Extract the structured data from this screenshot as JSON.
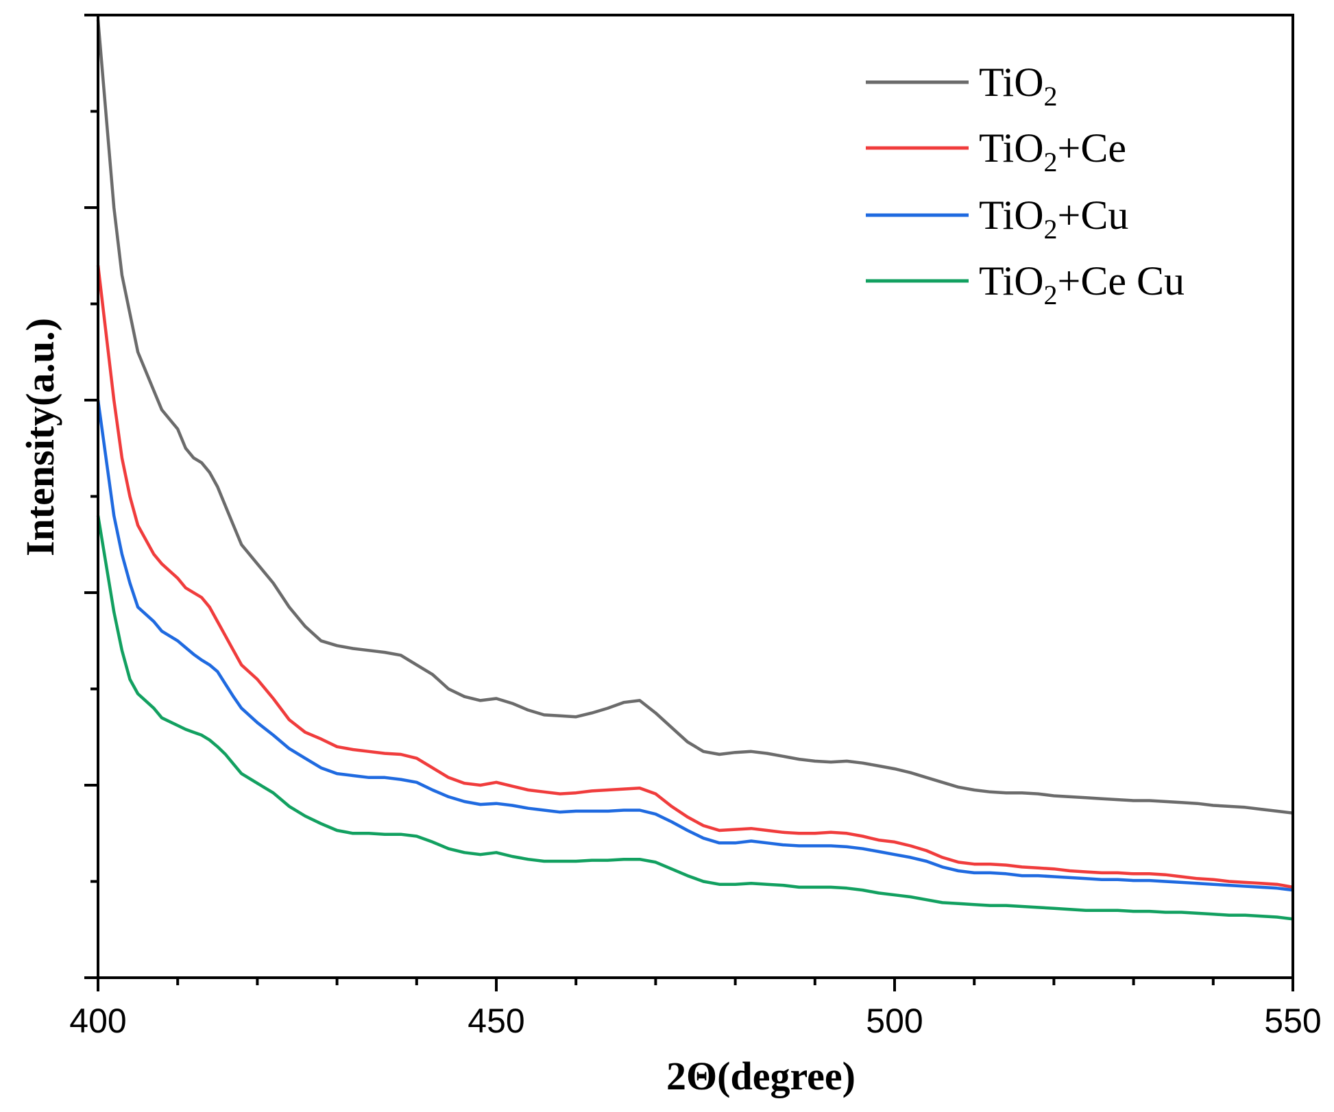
{
  "chart_data": {
    "type": "line",
    "title": "",
    "xlabel": "2Θ(degree)",
    "ylabel": "Intensity(a.u.)",
    "xlim": [
      400,
      550
    ],
    "ylim": [
      0,
      100
    ],
    "x_ticks": [
      400,
      450,
      500,
      550
    ],
    "x_tick_labels": [
      "400",
      "450",
      "500",
      "550"
    ],
    "y_tick_labels_shown": false,
    "legend_position": "top-right",
    "series": [
      {
        "name": "TiO2",
        "legend_main": "TiO",
        "legend_sub": "2",
        "legend_suffix": "",
        "color": "#6b6b6b",
        "x": [
          400,
          402,
          403,
          404,
          405,
          407,
          408,
          410,
          411,
          412,
          413,
          414,
          415,
          416,
          417,
          418,
          420,
          422,
          424,
          426,
          428,
          430,
          432,
          434,
          436,
          438,
          440,
          442,
          444,
          446,
          448,
          450,
          452,
          454,
          456,
          458,
          460,
          462,
          464,
          466,
          468,
          470,
          472,
          474,
          476,
          478,
          480,
          482,
          484,
          486,
          488,
          490,
          492,
          494,
          496,
          498,
          500,
          502,
          504,
          506,
          508,
          510,
          512,
          514,
          516,
          518,
          520,
          522,
          524,
          526,
          528,
          530,
          532,
          534,
          536,
          538,
          540,
          542,
          544,
          546,
          548,
          550
        ],
        "y": [
          99.5,
          80,
          73,
          69,
          65,
          61,
          59,
          57,
          55,
          54,
          53.5,
          52.5,
          51,
          49,
          47,
          45,
          43,
          41,
          38.5,
          36.5,
          35,
          34.5,
          34.2,
          34,
          33.8,
          33.5,
          32.5,
          31.5,
          30,
          29.2,
          28.8,
          29,
          28.5,
          27.8,
          27.3,
          27.2,
          27.1,
          27.5,
          28,
          28.6,
          28.8,
          27.5,
          26,
          24.5,
          23.5,
          23.2,
          23.4,
          23.5,
          23.3,
          23,
          22.7,
          22.5,
          22.4,
          22.5,
          22.3,
          22,
          21.7,
          21.3,
          20.8,
          20.3,
          19.8,
          19.5,
          19.3,
          19.2,
          19.2,
          19.1,
          18.9,
          18.8,
          18.7,
          18.6,
          18.5,
          18.4,
          18.4,
          18.3,
          18.2,
          18.1,
          17.9,
          17.8,
          17.7,
          17.5,
          17.3,
          17.1
        ]
      },
      {
        "name": "TiO2+Ce",
        "legend_main": "TiO",
        "legend_sub": "2",
        "legend_suffix": "+Ce",
        "color": "#f03c3c",
        "x": [
          400,
          402,
          403,
          404,
          405,
          407,
          408,
          410,
          411,
          412,
          413,
          414,
          415,
          416,
          417,
          418,
          420,
          422,
          424,
          426,
          428,
          430,
          432,
          434,
          436,
          438,
          440,
          442,
          444,
          446,
          448,
          450,
          452,
          454,
          456,
          458,
          460,
          462,
          464,
          466,
          468,
          470,
          472,
          474,
          476,
          478,
          480,
          482,
          484,
          486,
          488,
          490,
          492,
          494,
          496,
          498,
          500,
          502,
          504,
          506,
          508,
          510,
          512,
          514,
          516,
          518,
          520,
          522,
          524,
          526,
          528,
          530,
          532,
          534,
          536,
          538,
          540,
          542,
          544,
          546,
          548,
          550
        ],
        "y": [
          74,
          60,
          54,
          50,
          47,
          44,
          43,
          41.5,
          40.5,
          40,
          39.5,
          38.5,
          37,
          35.5,
          34,
          32.5,
          31,
          29,
          26.8,
          25.5,
          24.8,
          24,
          23.7,
          23.5,
          23.3,
          23.2,
          22.8,
          21.8,
          20.8,
          20.2,
          20,
          20.3,
          19.9,
          19.5,
          19.3,
          19.1,
          19.2,
          19.4,
          19.5,
          19.6,
          19.7,
          19.1,
          17.8,
          16.7,
          15.8,
          15.3,
          15.4,
          15.5,
          15.3,
          15.1,
          15,
          15,
          15.1,
          15,
          14.7,
          14.3,
          14.1,
          13.7,
          13.2,
          12.5,
          12,
          11.8,
          11.8,
          11.7,
          11.5,
          11.4,
          11.3,
          11.1,
          11,
          10.9,
          10.9,
          10.8,
          10.8,
          10.7,
          10.5,
          10.3,
          10.2,
          10,
          9.9,
          9.8,
          9.7,
          9.4
        ]
      },
      {
        "name": "TiO2+Cu",
        "legend_main": "TiO",
        "legend_sub": "2",
        "legend_suffix": "+Cu",
        "color": "#1f6ae0",
        "x": [
          400,
          402,
          403,
          404,
          405,
          407,
          408,
          410,
          411,
          412,
          413,
          414,
          415,
          416,
          417,
          418,
          420,
          422,
          424,
          426,
          428,
          430,
          432,
          434,
          436,
          438,
          440,
          442,
          444,
          446,
          448,
          450,
          452,
          454,
          456,
          458,
          460,
          462,
          464,
          466,
          468,
          470,
          472,
          474,
          476,
          478,
          480,
          482,
          484,
          486,
          488,
          490,
          492,
          494,
          496,
          498,
          500,
          502,
          504,
          506,
          508,
          510,
          512,
          514,
          516,
          518,
          520,
          522,
          524,
          526,
          528,
          530,
          532,
          534,
          536,
          538,
          540,
          542,
          544,
          546,
          548,
          550
        ],
        "y": [
          60,
          48,
          44,
          41,
          38.5,
          37,
          36,
          35,
          34.3,
          33.6,
          33,
          32.5,
          31.8,
          30.5,
          29.2,
          28,
          26.5,
          25.2,
          23.8,
          22.8,
          21.8,
          21.2,
          21,
          20.8,
          20.8,
          20.6,
          20.3,
          19.5,
          18.8,
          18.3,
          18,
          18.1,
          17.9,
          17.6,
          17.4,
          17.2,
          17.3,
          17.3,
          17.3,
          17.4,
          17.4,
          17,
          16.2,
          15.3,
          14.5,
          14,
          14,
          14.2,
          14,
          13.8,
          13.7,
          13.7,
          13.7,
          13.6,
          13.4,
          13.1,
          12.8,
          12.5,
          12.1,
          11.5,
          11.1,
          10.9,
          10.9,
          10.8,
          10.6,
          10.6,
          10.5,
          10.4,
          10.3,
          10.2,
          10.2,
          10.1,
          10.1,
          10,
          9.9,
          9.8,
          9.7,
          9.6,
          9.5,
          9.4,
          9.3,
          9.1
        ]
      },
      {
        "name": "TiO2+Ce Cu",
        "legend_main": "TiO",
        "legend_sub": "2",
        "legend_suffix": "+Ce Cu",
        "color": "#12a060",
        "x": [
          400,
          402,
          403,
          404,
          405,
          407,
          408,
          410,
          411,
          412,
          413,
          414,
          415,
          416,
          417,
          418,
          420,
          422,
          424,
          426,
          428,
          430,
          432,
          434,
          436,
          438,
          440,
          442,
          444,
          446,
          448,
          450,
          452,
          454,
          456,
          458,
          460,
          462,
          464,
          466,
          468,
          470,
          472,
          474,
          476,
          478,
          480,
          482,
          484,
          486,
          488,
          490,
          492,
          494,
          496,
          498,
          500,
          502,
          504,
          506,
          508,
          510,
          512,
          514,
          516,
          518,
          520,
          522,
          524,
          526,
          528,
          530,
          532,
          534,
          536,
          538,
          540,
          542,
          544,
          546,
          548,
          550
        ],
        "y": [
          48,
          38,
          34,
          31,
          29.5,
          28,
          27,
          26.2,
          25.8,
          25.5,
          25.2,
          24.7,
          24,
          23.2,
          22.2,
          21.2,
          20.2,
          19.2,
          17.8,
          16.8,
          16,
          15.3,
          15,
          15,
          14.9,
          14.9,
          14.7,
          14.1,
          13.4,
          13,
          12.8,
          13,
          12.6,
          12.3,
          12.1,
          12.1,
          12.1,
          12.2,
          12.2,
          12.3,
          12.3,
          12,
          11.3,
          10.6,
          10,
          9.7,
          9.7,
          9.8,
          9.7,
          9.6,
          9.4,
          9.4,
          9.4,
          9.3,
          9.1,
          8.8,
          8.6,
          8.4,
          8.1,
          7.8,
          7.7,
          7.6,
          7.5,
          7.5,
          7.4,
          7.3,
          7.2,
          7.1,
          7,
          7,
          7,
          6.9,
          6.9,
          6.8,
          6.8,
          6.7,
          6.6,
          6.5,
          6.5,
          6.4,
          6.3,
          6.1
        ]
      }
    ]
  }
}
